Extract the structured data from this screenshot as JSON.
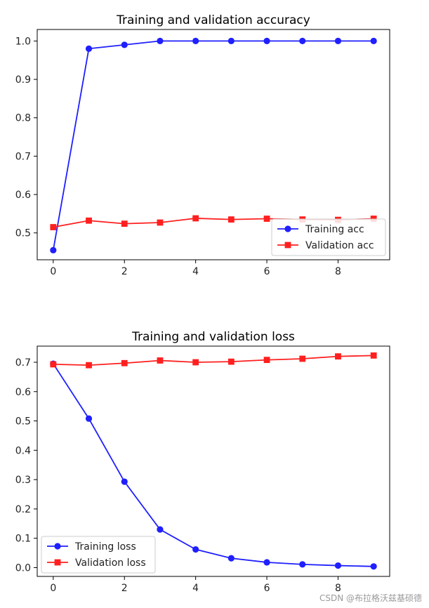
{
  "chart_data": [
    {
      "type": "line",
      "title": "Training and validation accuracy",
      "xlabel": "",
      "ylabel": "",
      "x": [
        0,
        1,
        2,
        3,
        4,
        5,
        6,
        7,
        8,
        9
      ],
      "xlim": [
        -0.45,
        9.45
      ],
      "ylim": [
        0.43,
        1.03
      ],
      "xticks": [
        0,
        2,
        4,
        6,
        8
      ],
      "yticks": [
        0.5,
        0.6,
        0.7,
        0.8,
        0.9,
        1.0
      ],
      "grid": false,
      "legend": "lower-right",
      "series": [
        {
          "name": "Training acc",
          "color": "#1f1fff",
          "marker": "circle",
          "values": [
            0.455,
            0.98,
            0.99,
            1.0,
            1.0,
            1.0,
            1.0,
            1.0,
            1.0,
            1.0
          ]
        },
        {
          "name": "Validation acc",
          "color": "#ff1f1f",
          "marker": "square",
          "values": [
            0.515,
            0.532,
            0.524,
            0.527,
            0.538,
            0.535,
            0.537,
            0.535,
            0.534,
            0.537
          ]
        }
      ]
    },
    {
      "type": "line",
      "title": "Training and validation loss",
      "xlabel": "",
      "ylabel": "",
      "x": [
        0,
        1,
        2,
        3,
        4,
        5,
        6,
        7,
        8,
        9
      ],
      "xlim": [
        -0.45,
        9.45
      ],
      "ylim": [
        -0.03,
        0.755
      ],
      "xticks": [
        0,
        2,
        4,
        6,
        8
      ],
      "yticks": [
        0.0,
        0.1,
        0.2,
        0.3,
        0.4,
        0.5,
        0.6,
        0.7
      ],
      "grid": false,
      "legend": "lower-left",
      "series": [
        {
          "name": "Training loss",
          "color": "#1f1fff",
          "marker": "circle",
          "values": [
            0.695,
            0.508,
            0.293,
            0.13,
            0.062,
            0.032,
            0.018,
            0.011,
            0.007,
            0.004
          ]
        },
        {
          "name": "Validation loss",
          "color": "#ff1f1f",
          "marker": "square",
          "values": [
            0.693,
            0.69,
            0.697,
            0.706,
            0.7,
            0.702,
            0.708,
            0.712,
            0.72,
            0.723
          ]
        }
      ]
    }
  ],
  "watermark": "CSDN @布拉格沃兹基硕德"
}
